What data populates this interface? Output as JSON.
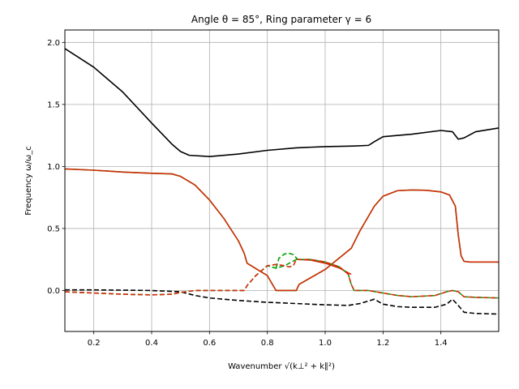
{
  "chart_data": {
    "type": "line",
    "title": "Angle θ = 85°, Ring parameter γ = 6",
    "xlabel": "Wavenumber √(k⊥² + k∥²)",
    "ylabel": "Frequency ω/ω_c",
    "xlim": [
      0.1,
      1.6
    ],
    "ylim": [
      -0.33,
      2.1
    ],
    "xticks": [
      0.2,
      0.4,
      0.6,
      0.8,
      1.0,
      1.2,
      1.4
    ],
    "yticks": [
      0.0,
      0.5,
      1.0,
      1.5,
      2.0
    ],
    "xtick_labels": [
      "0.2",
      "0.4",
      "0.6",
      "0.8",
      "1.0",
      "1.2",
      "1.4"
    ],
    "ytick_labels": [
      "0.0",
      "0.5",
      "1.0",
      "1.5",
      "2.0"
    ],
    "grid": true,
    "series": [
      {
        "color": "#000000",
        "style": "solid",
        "points": [
          [
            0.1,
            1.95
          ],
          [
            0.2,
            1.8
          ],
          [
            0.3,
            1.6
          ],
          [
            0.4,
            1.35
          ],
          [
            0.47,
            1.18
          ],
          [
            0.5,
            1.12
          ],
          [
            0.53,
            1.09
          ],
          [
            0.6,
            1.08
          ],
          [
            0.7,
            1.1
          ],
          [
            0.8,
            1.13
          ],
          [
            0.9,
            1.15
          ],
          [
            1.0,
            1.16
          ],
          [
            1.1,
            1.165
          ],
          [
            1.15,
            1.17
          ],
          [
            1.17,
            1.2
          ],
          [
            1.2,
            1.24
          ],
          [
            1.3,
            1.26
          ],
          [
            1.4,
            1.29
          ],
          [
            1.44,
            1.28
          ],
          [
            1.46,
            1.22
          ],
          [
            1.48,
            1.23
          ],
          [
            1.52,
            1.28
          ],
          [
            1.6,
            1.31
          ]
        ]
      },
      {
        "color": "#00c000",
        "style": "solid",
        "points": [
          [
            0.1,
            0.98
          ],
          [
            0.2,
            0.97
          ],
          [
            0.3,
            0.955
          ],
          [
            0.4,
            0.945
          ],
          [
            0.47,
            0.94
          ],
          [
            0.5,
            0.92
          ],
          [
            0.55,
            0.85
          ],
          [
            0.6,
            0.73
          ],
          [
            0.65,
            0.58
          ],
          [
            0.7,
            0.4
          ],
          [
            0.72,
            0.3
          ],
          [
            0.73,
            0.22
          ],
          [
            0.8,
            0.12
          ],
          [
            0.83,
            0.0
          ],
          [
            0.9,
            0.0
          ],
          [
            0.91,
            0.05
          ],
          [
            1.0,
            0.17
          ],
          [
            1.09,
            0.34
          ],
          [
            1.12,
            0.48
          ],
          [
            1.17,
            0.68
          ],
          [
            1.2,
            0.76
          ],
          [
            1.25,
            0.805
          ],
          [
            1.3,
            0.81
          ],
          [
            1.35,
            0.808
          ],
          [
            1.4,
            0.795
          ],
          [
            1.43,
            0.77
          ],
          [
            1.45,
            0.68
          ],
          [
            1.46,
            0.45
          ],
          [
            1.47,
            0.28
          ],
          [
            1.48,
            0.235
          ],
          [
            1.5,
            0.23
          ],
          [
            1.6,
            0.23
          ]
        ]
      },
      {
        "color": "#d42a0a",
        "style": "solid",
        "points": [
          [
            0.1,
            0.98
          ],
          [
            0.2,
            0.97
          ],
          [
            0.3,
            0.955
          ],
          [
            0.4,
            0.945
          ],
          [
            0.47,
            0.94
          ],
          [
            0.5,
            0.92
          ],
          [
            0.55,
            0.85
          ],
          [
            0.6,
            0.73
          ],
          [
            0.65,
            0.58
          ],
          [
            0.7,
            0.4
          ],
          [
            0.72,
            0.3
          ],
          [
            0.73,
            0.22
          ],
          [
            0.8,
            0.12
          ],
          [
            0.83,
            0.0
          ],
          [
            0.9,
            0.0
          ],
          [
            0.91,
            0.05
          ],
          [
            1.0,
            0.17
          ],
          [
            1.09,
            0.34
          ],
          [
            1.12,
            0.48
          ],
          [
            1.17,
            0.68
          ],
          [
            1.2,
            0.76
          ],
          [
            1.25,
            0.805
          ],
          [
            1.3,
            0.81
          ],
          [
            1.35,
            0.808
          ],
          [
            1.4,
            0.795
          ],
          [
            1.43,
            0.77
          ],
          [
            1.45,
            0.68
          ],
          [
            1.46,
            0.45
          ],
          [
            1.47,
            0.28
          ],
          [
            1.48,
            0.235
          ],
          [
            1.5,
            0.23
          ],
          [
            1.6,
            0.23
          ]
        ]
      },
      {
        "color": "#d42a0a",
        "style": "solid",
        "points": [
          [
            0.905,
            0.25
          ],
          [
            0.95,
            0.245
          ],
          [
            1.0,
            0.22
          ],
          [
            1.05,
            0.18
          ],
          [
            1.09,
            0.13
          ]
        ]
      },
      {
        "color": "#000000",
        "style": "dashed",
        "points": [
          [
            0.1,
            0.005
          ],
          [
            0.2,
            0.005
          ],
          [
            0.3,
            0.003
          ],
          [
            0.4,
            0.0
          ],
          [
            0.5,
            -0.01
          ],
          [
            0.55,
            -0.04
          ],
          [
            0.6,
            -0.06
          ],
          [
            0.7,
            -0.08
          ],
          [
            0.8,
            -0.095
          ],
          [
            0.9,
            -0.105
          ],
          [
            1.0,
            -0.115
          ],
          [
            1.08,
            -0.12
          ],
          [
            1.12,
            -0.105
          ],
          [
            1.17,
            -0.07
          ],
          [
            1.2,
            -0.11
          ],
          [
            1.25,
            -0.13
          ],
          [
            1.3,
            -0.135
          ],
          [
            1.38,
            -0.135
          ],
          [
            1.42,
            -0.11
          ],
          [
            1.44,
            -0.07
          ],
          [
            1.46,
            -0.12
          ],
          [
            1.48,
            -0.175
          ],
          [
            1.52,
            -0.185
          ],
          [
            1.6,
            -0.19
          ]
        ]
      },
      {
        "color": "#00a000",
        "style": "dashed",
        "points": [
          [
            0.83,
            0.18
          ],
          [
            0.84,
            0.26
          ],
          [
            0.86,
            0.295
          ],
          [
            0.875,
            0.3
          ],
          [
            0.89,
            0.29
          ],
          [
            0.905,
            0.25
          ]
        ]
      },
      {
        "color": "#00a000",
        "style": "dashed",
        "points": [
          [
            0.1,
            -0.01
          ],
          [
            0.2,
            -0.02
          ],
          [
            0.3,
            -0.03
          ],
          [
            0.4,
            -0.035
          ],
          [
            0.47,
            -0.03
          ],
          [
            0.5,
            -0.015
          ],
          [
            0.55,
            0.0
          ],
          [
            0.6,
            0.0
          ],
          [
            0.72,
            0.0
          ],
          [
            0.73,
            0.04
          ],
          [
            0.76,
            0.12
          ],
          [
            0.8,
            0.2
          ],
          [
            0.83,
            0.18
          ],
          [
            0.86,
            0.2
          ],
          [
            0.9,
            0.25
          ],
          [
            0.95,
            0.25
          ],
          [
            1.0,
            0.23
          ],
          [
            1.05,
            0.19
          ],
          [
            1.08,
            0.13
          ],
          [
            1.09,
            0.05
          ],
          [
            1.1,
            0.0
          ],
          [
            1.15,
            0.0
          ],
          [
            1.2,
            -0.02
          ],
          [
            1.25,
            -0.04
          ],
          [
            1.3,
            -0.05
          ],
          [
            1.38,
            -0.04
          ],
          [
            1.42,
            -0.01
          ],
          [
            1.44,
            0.0
          ],
          [
            1.46,
            -0.01
          ],
          [
            1.48,
            -0.05
          ],
          [
            1.52,
            -0.055
          ],
          [
            1.6,
            -0.06
          ]
        ]
      },
      {
        "color": "#d42a0a",
        "style": "dashed",
        "points": [
          [
            0.1,
            -0.01
          ],
          [
            0.2,
            -0.02
          ],
          [
            0.3,
            -0.03
          ],
          [
            0.4,
            -0.035
          ],
          [
            0.47,
            -0.03
          ],
          [
            0.5,
            -0.015
          ],
          [
            0.55,
            0.0
          ],
          [
            0.6,
            0.0
          ],
          [
            0.72,
            0.0
          ],
          [
            0.73,
            0.04
          ],
          [
            0.76,
            0.12
          ],
          [
            0.8,
            0.2
          ],
          [
            0.83,
            0.21
          ],
          [
            0.86,
            0.2
          ],
          [
            0.875,
            0.19
          ],
          [
            0.89,
            0.2
          ],
          [
            0.9,
            0.25
          ],
          [
            0.95,
            0.25
          ],
          [
            1.0,
            0.23
          ],
          [
            1.05,
            0.19
          ],
          [
            1.08,
            0.13
          ],
          [
            1.09,
            0.05
          ],
          [
            1.1,
            0.0
          ],
          [
            1.15,
            0.0
          ],
          [
            1.2,
            -0.02
          ],
          [
            1.25,
            -0.04
          ],
          [
            1.3,
            -0.05
          ],
          [
            1.38,
            -0.04
          ],
          [
            1.42,
            -0.01
          ],
          [
            1.44,
            0.0
          ],
          [
            1.46,
            -0.01
          ],
          [
            1.48,
            -0.05
          ],
          [
            1.52,
            -0.055
          ],
          [
            1.6,
            -0.06
          ]
        ]
      }
    ]
  }
}
